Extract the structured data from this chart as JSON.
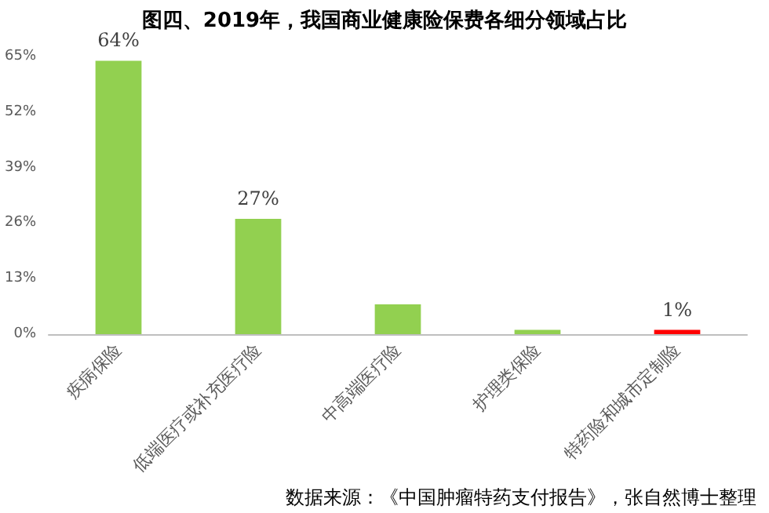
{
  "chart_data": {
    "type": "bar",
    "title": "图四、2019年，我国商业健康险保费各细分领域占比",
    "categories": [
      "疾病保险",
      "低端医疗或补充医疗险",
      "中高端医疗险",
      "护理类保险",
      "特药险和城市定制险"
    ],
    "values": [
      64,
      27,
      7,
      1,
      1
    ],
    "colors": [
      "#92d050",
      "#92d050",
      "#92d050",
      "#92d050",
      "#ff0000"
    ],
    "value_labels": [
      "64%",
      "27%",
      null,
      null,
      "1%"
    ],
    "ylim": [
      0,
      65
    ],
    "yticks": [
      {
        "value": 0,
        "label": "0%"
      },
      {
        "value": 13,
        "label": "13%"
      },
      {
        "value": 26,
        "label": "26%"
      },
      {
        "value": 39,
        "label": "39%"
      },
      {
        "value": 52,
        "label": "52%"
      },
      {
        "value": 65,
        "label": "65%"
      }
    ],
    "grid": false,
    "annotations": [
      "数据来源：《中国肿瘤特药支付报告》，张自然博士整理"
    ]
  }
}
